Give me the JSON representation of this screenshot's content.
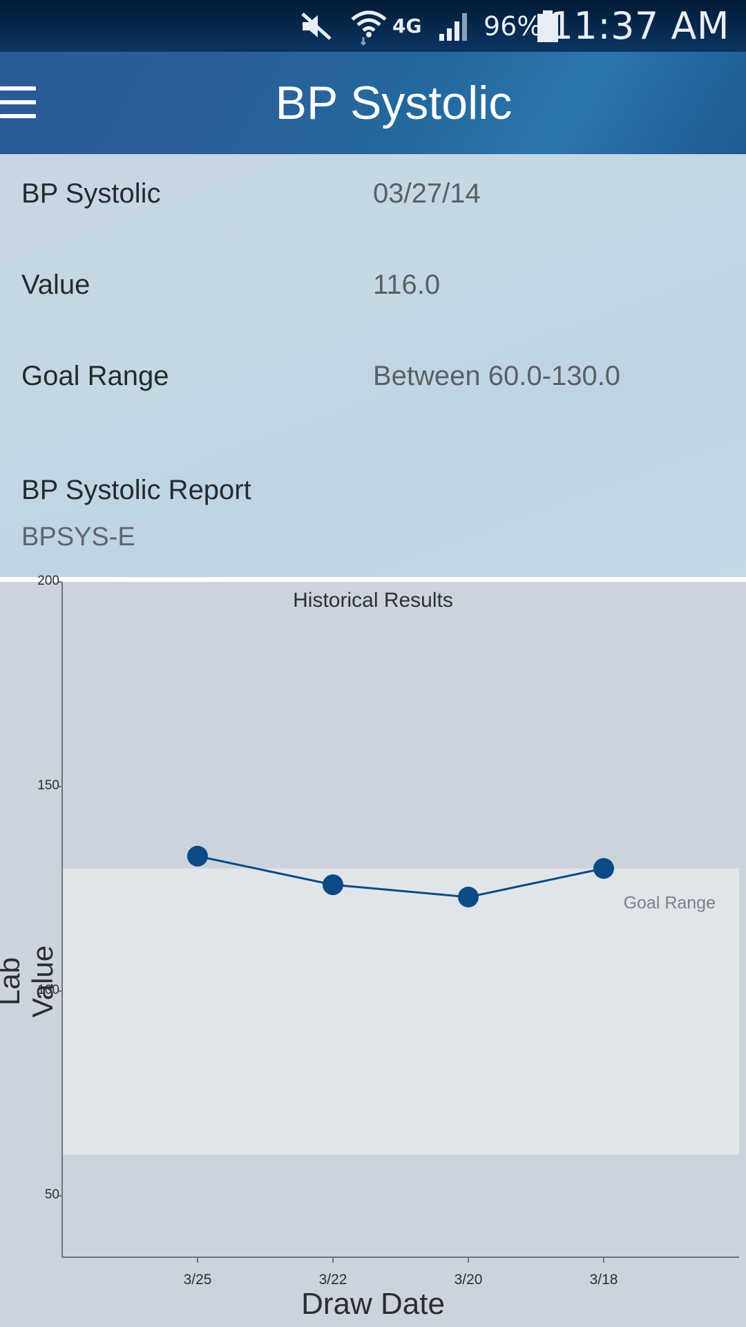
{
  "status_bar": {
    "time": "11:37 AM",
    "battery_percent": "96%",
    "network": "4G",
    "icons": [
      "mute-icon",
      "wifi-icon",
      "signal-icon",
      "battery-icon"
    ]
  },
  "app_bar": {
    "title": "BP Systolic",
    "menu_icon": "hamburger-menu-icon"
  },
  "details": {
    "rows": [
      {
        "label": "BP Systolic",
        "value": "03/27/14"
      },
      {
        "label": "Value",
        "value": "116.0"
      },
      {
        "label": "Goal Range",
        "value": "Between 60.0-130.0"
      }
    ],
    "report_title": "BP Systolic Report",
    "report_code": "BPSYS-E"
  },
  "colors": {
    "status_bar": "#0c3563",
    "app_bar": "#2a5f9a",
    "series": "#0b4a86",
    "goal_band": "#e1e5ea",
    "chart_bg": "#cdd3dc"
  },
  "chart_data": {
    "type": "line",
    "title": "Historical Results",
    "xlabel": "Draw Date",
    "ylabel": "Lab Value",
    "categories": [
      "3/25",
      "3/22",
      "3/20",
      "3/18"
    ],
    "series": [
      {
        "values": [
          133,
          126,
          123,
          130
        ]
      }
    ],
    "ylim": [
      35,
      200
    ],
    "yticks": [
      50,
      100,
      150,
      200
    ],
    "ytick_labels": [
      "50",
      "100",
      "150",
      "200"
    ],
    "goal_band": {
      "low": 60,
      "high": 130,
      "label": "Goal Range"
    },
    "grid": false
  }
}
